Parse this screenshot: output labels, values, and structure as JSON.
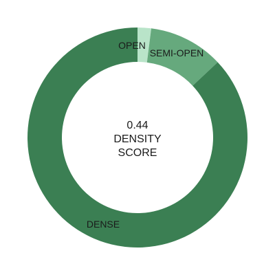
{
  "chart_data": {
    "type": "pie",
    "variant": "donut",
    "slices": [
      {
        "label": "OPEN",
        "value": 0.02,
        "color": "#b9e4c9"
      },
      {
        "label": "SEMI-OPEN",
        "value": 0.11,
        "color": "#66a97d"
      },
      {
        "label": "DENSE",
        "value": 0.87,
        "color": "#3b7f53"
      }
    ],
    "center": {
      "value": "0.44",
      "line1": "DENSITY",
      "line2": "SCORE"
    }
  }
}
